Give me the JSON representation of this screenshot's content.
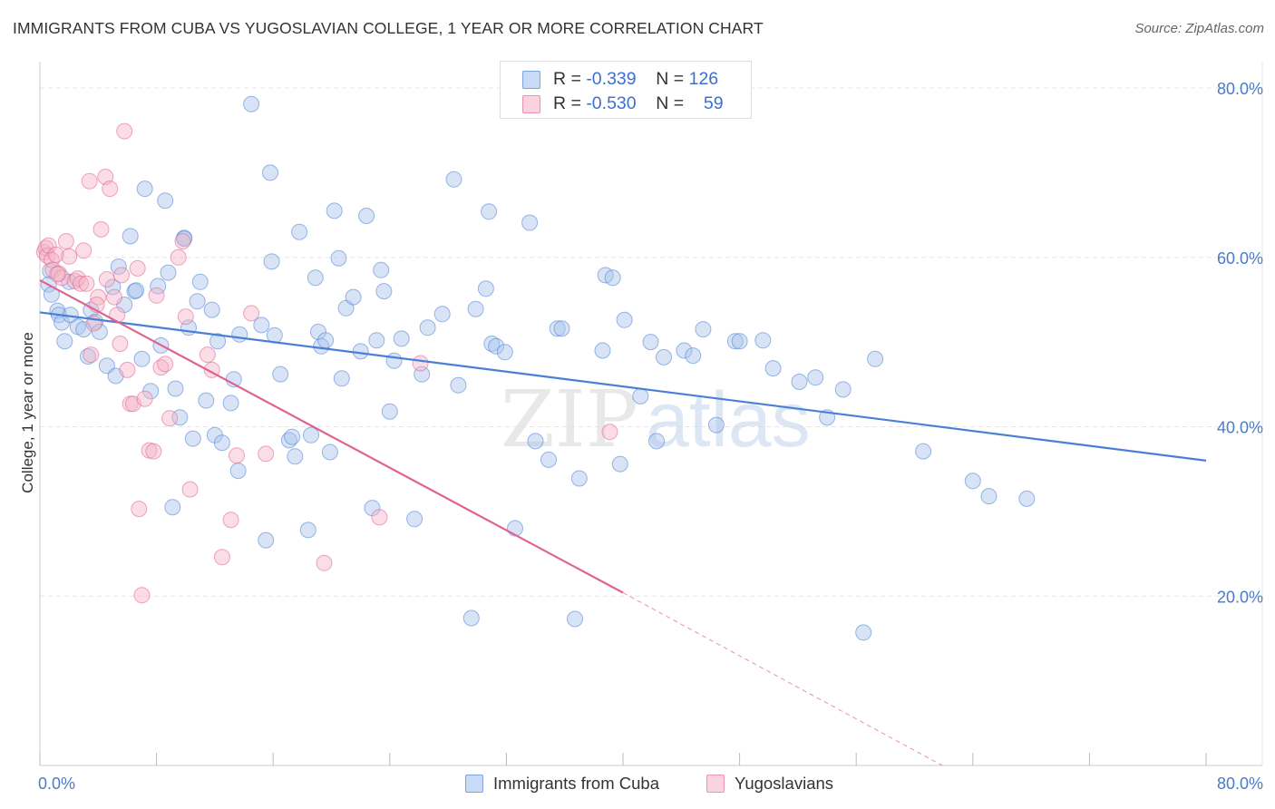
{
  "title": "IMMIGRANTS FROM CUBA VS YUGOSLAVIAN COLLEGE, 1 YEAR OR MORE CORRELATION CHART",
  "source": "Source: ZipAtlas.com",
  "watermark": {
    "zip": "ZIP",
    "atlas": "atlas"
  },
  "legend_top": {
    "rows": [
      {
        "r_label": "R = ",
        "r_value": "-0.339",
        "n_label": "N = ",
        "n_value": "126",
        "color": "#a9c4ec"
      },
      {
        "r_label": "R = ",
        "r_value": "-0.530",
        "n_label": "N = ",
        "n_value": "59",
        "color": "#f4b4c8"
      }
    ]
  },
  "legend_bottom": {
    "items": [
      {
        "label": "Immigrants from Cuba",
        "color": "#a9c4ec"
      },
      {
        "label": "Yugoslavians",
        "color": "#f4b4c8"
      }
    ]
  },
  "chart_data": {
    "type": "scatter",
    "xlabel": "",
    "ylabel": "College, 1 year or more",
    "xlim": [
      0,
      80
    ],
    "ylim": [
      0,
      83
    ],
    "x_tick_labels": [
      "0.0%",
      "80.0%"
    ],
    "y_tick_labels": [
      "20.0%",
      "40.0%",
      "60.0%",
      "80.0%"
    ],
    "y_ticks": [
      20,
      40,
      60,
      80
    ],
    "series": [
      {
        "name": "Immigrants from Cuba",
        "color": "#4a7fd6",
        "fill": "#a9c4ec",
        "trendline": {
          "x0": 0,
          "y0": 53.5,
          "x1": 80,
          "y1": 36.0
        },
        "points": [
          [
            0.7,
            58.4
          ],
          [
            0.6,
            56.8
          ],
          [
            0.8,
            55.6
          ],
          [
            1.2,
            53.7
          ],
          [
            1.3,
            53.2
          ],
          [
            1.5,
            52.3
          ],
          [
            1.7,
            50.1
          ],
          [
            2.1,
            53.2
          ],
          [
            2.6,
            51.8
          ],
          [
            3.0,
            51.5
          ],
          [
            3.3,
            48.3
          ],
          [
            3.5,
            53.8
          ],
          [
            3.8,
            52.4
          ],
          [
            4.1,
            51.2
          ],
          [
            4.6,
            47.2
          ],
          [
            5.0,
            56.5
          ],
          [
            5.2,
            46.0
          ],
          [
            5.4,
            58.9
          ],
          [
            5.8,
            54.4
          ],
          [
            6.2,
            62.5
          ],
          [
            6.5,
            56.0
          ],
          [
            6.6,
            56.1
          ],
          [
            7.0,
            48.0
          ],
          [
            7.2,
            68.1
          ],
          [
            7.6,
            44.2
          ],
          [
            8.1,
            56.6
          ],
          [
            8.3,
            49.6
          ],
          [
            8.6,
            66.7
          ],
          [
            8.8,
            58.2
          ],
          [
            9.1,
            30.5
          ],
          [
            9.3,
            44.5
          ],
          [
            9.6,
            41.1
          ],
          [
            9.9,
            62.3
          ],
          [
            10.2,
            51.7
          ],
          [
            10.5,
            38.6
          ],
          [
            10.8,
            54.8
          ],
          [
            11.0,
            57.1
          ],
          [
            11.4,
            43.1
          ],
          [
            11.8,
            53.8
          ],
          [
            12.0,
            39.0
          ],
          [
            12.2,
            50.1
          ],
          [
            12.5,
            38.1
          ],
          [
            13.1,
            42.8
          ],
          [
            13.3,
            45.6
          ],
          [
            13.6,
            34.8
          ],
          [
            13.7,
            50.9
          ],
          [
            14.5,
            78.1
          ],
          [
            15.2,
            52.0
          ],
          [
            15.5,
            26.6
          ],
          [
            15.8,
            70.0
          ],
          [
            15.9,
            59.5
          ],
          [
            16.1,
            50.8
          ],
          [
            16.5,
            46.2
          ],
          [
            17.1,
            38.4
          ],
          [
            17.3,
            38.8
          ],
          [
            17.5,
            36.5
          ],
          [
            17.8,
            63.0
          ],
          [
            18.4,
            27.8
          ],
          [
            18.6,
            39.0
          ],
          [
            18.9,
            57.6
          ],
          [
            19.1,
            51.2
          ],
          [
            19.3,
            49.5
          ],
          [
            19.6,
            50.2
          ],
          [
            19.9,
            37.0
          ],
          [
            20.2,
            65.5
          ],
          [
            20.5,
            59.9
          ],
          [
            20.7,
            45.7
          ],
          [
            21.0,
            54.0
          ],
          [
            21.5,
            55.3
          ],
          [
            22.0,
            48.9
          ],
          [
            22.4,
            64.9
          ],
          [
            22.8,
            30.4
          ],
          [
            23.1,
            50.2
          ],
          [
            23.4,
            58.5
          ],
          [
            23.6,
            56.0
          ],
          [
            24.0,
            41.8
          ],
          [
            24.3,
            47.8
          ],
          [
            24.8,
            50.4
          ],
          [
            25.7,
            29.1
          ],
          [
            26.2,
            46.2
          ],
          [
            26.6,
            51.7
          ],
          [
            27.6,
            53.3
          ],
          [
            28.4,
            69.2
          ],
          [
            28.7,
            44.9
          ],
          [
            29.6,
            17.4
          ],
          [
            29.9,
            53.9
          ],
          [
            30.6,
            56.3
          ],
          [
            30.8,
            65.4
          ],
          [
            31.0,
            49.8
          ],
          [
            31.3,
            49.5
          ],
          [
            31.9,
            48.8
          ],
          [
            32.6,
            28.0
          ],
          [
            33.6,
            64.1
          ],
          [
            34.0,
            38.3
          ],
          [
            34.9,
            36.1
          ],
          [
            35.5,
            51.6
          ],
          [
            35.8,
            51.6
          ],
          [
            36.7,
            17.3
          ],
          [
            37.0,
            33.9
          ],
          [
            38.6,
            49.0
          ],
          [
            38.8,
            57.9
          ],
          [
            39.3,
            57.6
          ],
          [
            39.8,
            35.6
          ],
          [
            40.1,
            52.6
          ],
          [
            41.2,
            43.6
          ],
          [
            41.9,
            50.0
          ],
          [
            42.3,
            38.3
          ],
          [
            42.8,
            48.2
          ],
          [
            44.2,
            49.0
          ],
          [
            44.8,
            48.4
          ],
          [
            45.5,
            51.5
          ],
          [
            46.4,
            40.2
          ],
          [
            47.7,
            50.1
          ],
          [
            48.0,
            50.1
          ],
          [
            49.6,
            50.2
          ],
          [
            50.3,
            46.9
          ],
          [
            52.1,
            45.3
          ],
          [
            53.2,
            45.8
          ],
          [
            54.0,
            41.1
          ],
          [
            55.1,
            44.4
          ],
          [
            56.5,
            15.7
          ],
          [
            57.3,
            48.0
          ],
          [
            60.6,
            37.1
          ],
          [
            64.0,
            33.6
          ],
          [
            65.1,
            31.8
          ],
          [
            67.7,
            31.5
          ],
          [
            2.0,
            57.1
          ],
          [
            9.9,
            62.2
          ]
        ]
      },
      {
        "name": "Yugoslavians",
        "color": "#e0638e",
        "fill": "#f4b4c8",
        "trendline": {
          "x0": 0,
          "y0": 57.3,
          "x1": 40,
          "y1": 20.4,
          "dash_to": {
            "x": 61.9,
            "y": 0
          }
        },
        "points": [
          [
            0.3,
            60.6
          ],
          [
            0.4,
            61.1
          ],
          [
            0.5,
            60.2
          ],
          [
            0.6,
            61.4
          ],
          [
            0.8,
            59.7
          ],
          [
            0.9,
            58.5
          ],
          [
            1.1,
            60.3
          ],
          [
            1.3,
            58.1
          ],
          [
            1.5,
            57.6
          ],
          [
            1.8,
            61.9
          ],
          [
            2.0,
            60.1
          ],
          [
            2.4,
            57.2
          ],
          [
            2.6,
            57.5
          ],
          [
            2.8,
            56.9
          ],
          [
            3.0,
            60.8
          ],
          [
            3.2,
            56.9
          ],
          [
            3.4,
            69.0
          ],
          [
            3.5,
            48.5
          ],
          [
            3.7,
            52.2
          ],
          [
            4.0,
            55.3
          ],
          [
            4.2,
            63.3
          ],
          [
            4.5,
            69.5
          ],
          [
            4.6,
            57.4
          ],
          [
            4.8,
            68.1
          ],
          [
            5.1,
            55.3
          ],
          [
            5.3,
            53.2
          ],
          [
            5.5,
            49.8
          ],
          [
            5.6,
            57.9
          ],
          [
            5.8,
            74.9
          ],
          [
            6.0,
            46.7
          ],
          [
            6.2,
            42.7
          ],
          [
            6.4,
            42.7
          ],
          [
            6.7,
            58.7
          ],
          [
            6.8,
            30.3
          ],
          [
            7.0,
            20.1
          ],
          [
            7.2,
            43.3
          ],
          [
            7.5,
            37.2
          ],
          [
            7.8,
            37.1
          ],
          [
            8.0,
            55.5
          ],
          [
            8.3,
            47.0
          ],
          [
            8.6,
            47.4
          ],
          [
            8.9,
            41.0
          ],
          [
            9.5,
            60.0
          ],
          [
            9.8,
            61.9
          ],
          [
            10.0,
            53.0
          ],
          [
            10.3,
            32.6
          ],
          [
            11.5,
            48.5
          ],
          [
            11.8,
            46.7
          ],
          [
            12.5,
            24.6
          ],
          [
            13.1,
            29.0
          ],
          [
            13.5,
            36.6
          ],
          [
            14.5,
            53.4
          ],
          [
            15.5,
            36.8
          ],
          [
            19.5,
            23.9
          ],
          [
            23.3,
            29.3
          ],
          [
            26.1,
            47.5
          ],
          [
            39.1,
            39.4
          ],
          [
            1.2,
            58.0
          ],
          [
            3.9,
            54.4
          ]
        ]
      }
    ]
  }
}
